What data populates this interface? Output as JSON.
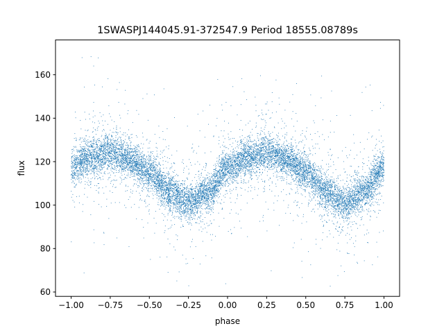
{
  "chart_data": {
    "type": "scatter",
    "title": "1SWASPJ144045.91-372547.9 Period 18555.08789s",
    "xlabel": "phase",
    "ylabel": "flux",
    "xlim": [
      -1.1,
      1.1
    ],
    "ylim": [
      58,
      176
    ],
    "xticks": [
      -1.0,
      -0.75,
      -0.5,
      -0.25,
      0.0,
      0.25,
      0.5,
      0.75,
      1.0
    ],
    "xtick_labels": [
      "−1.00",
      "−0.75",
      "−0.50",
      "−0.25",
      "0.00",
      "0.25",
      "0.50",
      "0.75",
      "1.00"
    ],
    "yticks": [
      60,
      80,
      100,
      120,
      140,
      160
    ],
    "ytick_labels": [
      "60",
      "80",
      "100",
      "120",
      "140",
      "160"
    ],
    "grid": false,
    "marker_color": "#1f77b4",
    "phase_range": [
      -1.0,
      1.0
    ],
    "trend": {
      "x": [
        -1.0,
        -0.875,
        -0.75,
        -0.625,
        -0.5,
        -0.375,
        -0.25,
        -0.125,
        0.0,
        0.125,
        0.25,
        0.375,
        0.5,
        0.625,
        0.75,
        0.875,
        1.0
      ],
      "y": [
        117,
        122,
        124,
        121,
        115,
        106,
        101,
        106,
        117,
        122,
        124,
        121,
        115,
        106,
        101,
        106,
        117
      ]
    },
    "point_count": 12000
  }
}
